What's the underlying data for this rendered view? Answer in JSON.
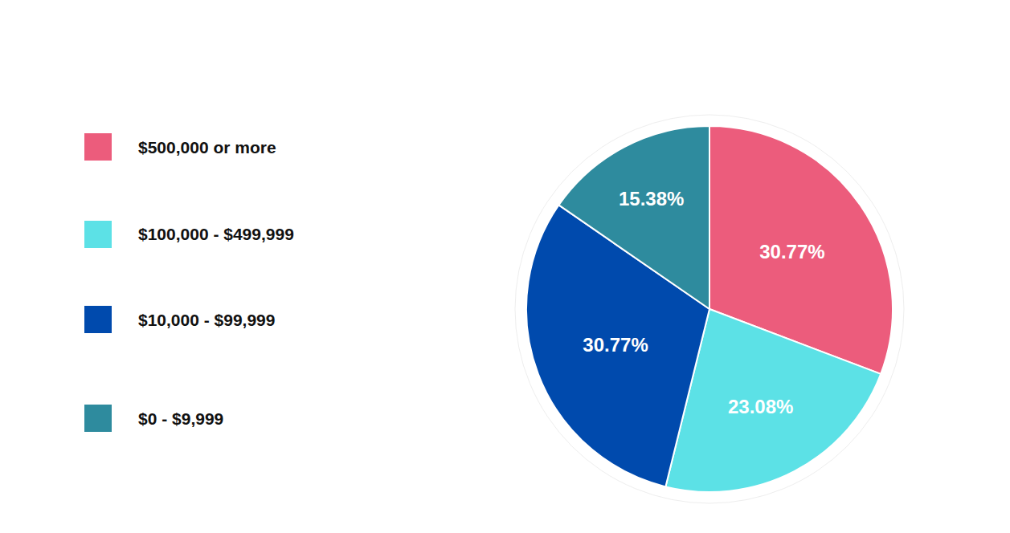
{
  "chart_data": {
    "type": "pie",
    "categories": [
      "$500,000 or more",
      "$100,000 - $499,999",
      "$10,000 - $99,999",
      "$0 - $9,999"
    ],
    "values": [
      30.77,
      23.08,
      30.77,
      15.38
    ],
    "value_labels": [
      "30.77%",
      "23.08%",
      "30.77%",
      "15.38%"
    ],
    "colors": [
      "#ec5c7c",
      "#5ce1e6",
      "#004aad",
      "#2e8b9e"
    ],
    "data_labels": true,
    "legend": "left"
  }
}
